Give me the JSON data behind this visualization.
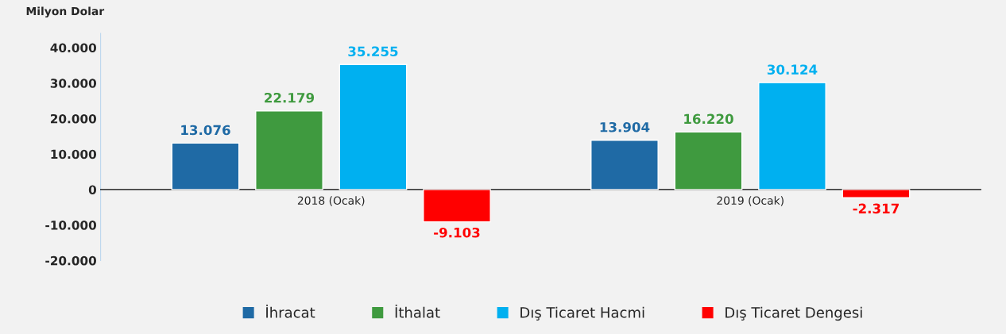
{
  "chart_data": {
    "type": "bar",
    "ylabel": "Milyon Dolar",
    "categories": [
      "2018 (Ocak)",
      "2019 (Ocak)"
    ],
    "series": [
      {
        "name": "İhracat",
        "color": "#1f6aa5",
        "values": [
          13076,
          13904
        ],
        "value_labels": [
          "13.076",
          "13.904"
        ]
      },
      {
        "name": "İthalat",
        "color": "#3f9a3f",
        "values": [
          22179,
          16220
        ],
        "value_labels": [
          "22.179",
          "16.220"
        ]
      },
      {
        "name": "Dış Ticaret Hacmi",
        "color": "#00b0f0",
        "values": [
          35255,
          30124
        ],
        "value_labels": [
          "35.255",
          "30.124"
        ]
      },
      {
        "name": "Dış Ticaret Dengesi",
        "color": "#ff0000",
        "values": [
          -9103,
          -2317
        ],
        "value_labels": [
          "-9.103",
          "-2.317"
        ]
      }
    ],
    "ylim": [
      -20000,
      44000
    ],
    "yticks": [
      {
        "value": -20000,
        "label": "-20.000"
      },
      {
        "value": -10000,
        "label": "-10.000"
      },
      {
        "value": 0,
        "label": "0"
      },
      {
        "value": 10000,
        "label": "10.000"
      },
      {
        "value": 20000,
        "label": "20.000"
      },
      {
        "value": 30000,
        "label": "30.000"
      },
      {
        "value": 40000,
        "label": "40.000"
      }
    ],
    "grid": false,
    "legend": "bottom"
  }
}
